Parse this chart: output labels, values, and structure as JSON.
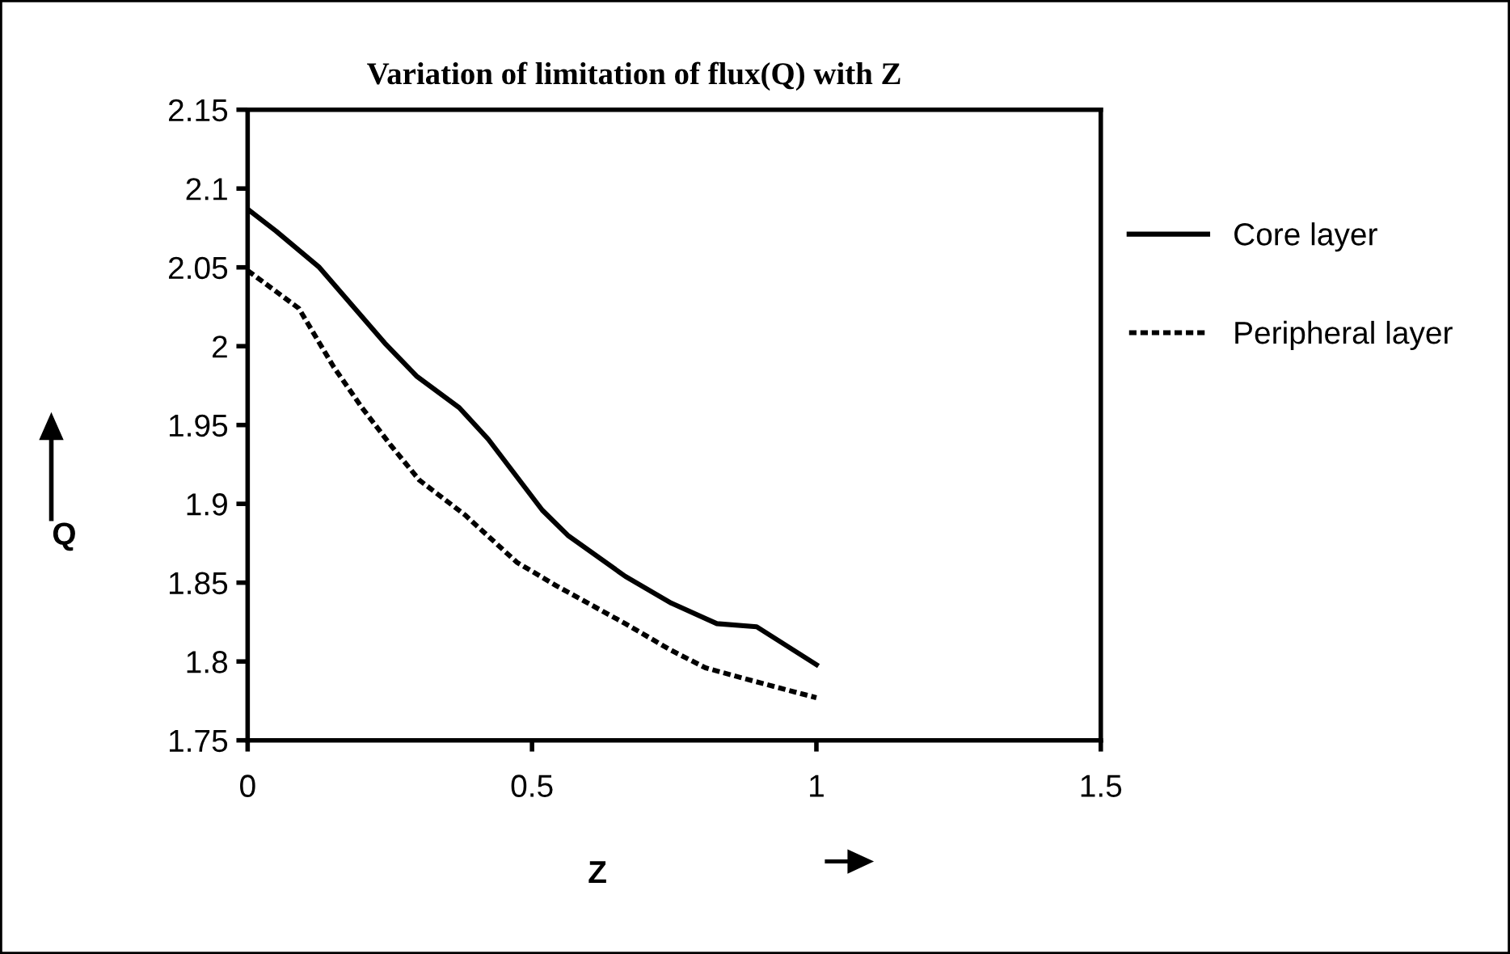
{
  "chart_data": {
    "type": "line",
    "title": "Variation of limitation of flux(Q) with Z",
    "xlabel": "Z",
    "ylabel": "Q",
    "xlim": [
      0,
      1.5
    ],
    "xticks": [
      0,
      0.5,
      1,
      1.5
    ],
    "ylim": [
      1.75,
      2.15
    ],
    "yticks": [
      1.75,
      1.8,
      1.85,
      1.9,
      1.95,
      2,
      2.05,
      2.1,
      2.15
    ],
    "grid": false,
    "legend": "right",
    "marker": "none",
    "series": [
      {
        "name": "Core layer",
        "color": "#000000",
        "line_style": "solid",
        "x": [
          0,
          0.05,
          0.126,
          0.241,
          0.297,
          0.372,
          0.423,
          0.518,
          0.563,
          0.664,
          0.745,
          0.825,
          0.895,
          1.0
        ],
        "values": [
          2.087,
          2.073,
          2.05,
          2.002,
          1.981,
          1.961,
          1.941,
          1.896,
          1.88,
          1.854,
          1.837,
          1.824,
          1.822,
          1.798
        ]
      },
      {
        "name": "Peripheral layer",
        "color": "#000000",
        "line_style": "dotted",
        "x": [
          0,
          0.09,
          0.151,
          0.201,
          0.252,
          0.302,
          0.382,
          0.473,
          0.543,
          0.664,
          0.745,
          0.805,
          0.875,
          1.0
        ],
        "values": [
          2.048,
          2.024,
          1.987,
          1.961,
          1.937,
          1.915,
          1.893,
          1.863,
          1.848,
          1.824,
          1.807,
          1.796,
          1.789,
          1.777
        ]
      }
    ]
  }
}
